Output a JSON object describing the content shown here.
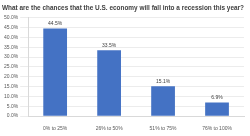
{
  "chart_data": {
    "type": "bar",
    "title": "What are the chances that the U.S. economy will fall into a recession this year?",
    "categories": [
      "0% to 25%",
      "26% to 50%",
      "51% to 75%",
      "76% to 100%"
    ],
    "values": [
      44.5,
      33.5,
      15.1,
      6.9
    ],
    "value_labels": [
      "44.5%",
      "33.5%",
      "15.1%",
      "6.9%"
    ],
    "data_labels": true,
    "color": "#4472c4",
    "ylim": [
      0,
      50
    ],
    "yticks": [
      {
        "value": 0,
        "label": "0.0%"
      },
      {
        "value": 5,
        "label": "5.0%"
      },
      {
        "value": 10,
        "label": "10.0%"
      },
      {
        "value": 15,
        "label": "15.0%"
      },
      {
        "value": 20,
        "label": "20.0%"
      },
      {
        "value": 25,
        "label": "25.0%"
      },
      {
        "value": 30,
        "label": "30.0%"
      },
      {
        "value": 35,
        "label": "35.0%"
      },
      {
        "value": 40,
        "label": "40.0%"
      },
      {
        "value": 45,
        "label": "45.0%"
      },
      {
        "value": 50,
        "label": "50.0%"
      }
    ],
    "grid": true
  }
}
